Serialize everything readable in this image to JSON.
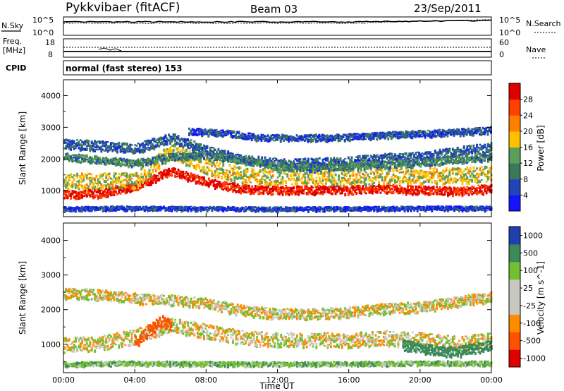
{
  "header": {
    "station": "Pykkvibaer (fitACF)",
    "beam": "Beam 03",
    "date": "23/Sep/2011"
  },
  "nsky_panel": {
    "left_label": "N.Sky",
    "left_ticks": [
      "10^5",
      "10^0"
    ],
    "right_ticks": [
      "10^5",
      "10^0"
    ],
    "right_label": "N.Search"
  },
  "freq_panel": {
    "left_label_1": "Freq.",
    "left_label_2": "[MHz]",
    "left_ticks": [
      "18",
      "8"
    ],
    "right_ticks": [
      "60",
      "0"
    ],
    "right_label": "Nave"
  },
  "cpid": {
    "label": "CPID",
    "value": "normal (fast stereo) 153"
  },
  "colors": {
    "power_scale": [
      "#1414ff",
      "#2244bb",
      "#3a7a5a",
      "#5aa05a",
      "#ffc000",
      "#ff8000",
      "#ff4000",
      "#e00000"
    ],
    "velocity_scale": [
      "#e00000",
      "#ff5000",
      "#ff8c00",
      "#c8c8c0",
      "#c8c8c0",
      "#70c030",
      "#3a8a5a",
      "#2040b0"
    ]
  },
  "chart_data": [
    {
      "type": "heatmap",
      "title": "",
      "xlabel": "",
      "ylabel": "Slant Range [km]",
      "x_ticks": [
        "00:00",
        "04:00",
        "08:00",
        "12:00",
        "16:00",
        "20:00",
        "00:00"
      ],
      "y_ticks": [
        "1000",
        "2000",
        "3000",
        "4000"
      ],
      "xlim": [
        0,
        24
      ],
      "ylim": [
        180,
        4500
      ],
      "colorbar": {
        "label": "Power [dB]",
        "ticks": [
          "4",
          "8",
          "12",
          "16",
          "20",
          "24",
          "28"
        ],
        "range": [
          0,
          30
        ]
      },
      "bands": [
        {
          "x": [
            0,
            2,
            4,
            6,
            8,
            10,
            12,
            14,
            16,
            18,
            20,
            22,
            24
          ],
          "y": [
            900,
            950,
            1150,
            1650,
            1300,
            1080,
            1050,
            1050,
            1050,
            1100,
            1050,
            1000,
            1100
          ],
          "thickness": 260,
          "value": 27
        },
        {
          "x": [
            0,
            2,
            4,
            6,
            8,
            10,
            12,
            14,
            16,
            18,
            20,
            22,
            24
          ],
          "y": [
            1300,
            1350,
            1350,
            2300,
            1800,
            1500,
            1450,
            1450,
            1450,
            1500,
            1500,
            1500,
            1550
          ],
          "thickness": 500,
          "value": 16
        },
        {
          "x": [
            0,
            2,
            4,
            6,
            8,
            10,
            12,
            14,
            16,
            18,
            20,
            22,
            24
          ],
          "y": [
            2500,
            2450,
            2350,
            2700,
            2300,
            2000,
            1900,
            1900,
            1950,
            2050,
            2100,
            2250,
            2400
          ],
          "thickness": 300,
          "value": 7
        },
        {
          "x": [
            0,
            2,
            4,
            6,
            8,
            10,
            12,
            14,
            16,
            18,
            20,
            22,
            24
          ],
          "y": [
            2100,
            2000,
            1900,
            2100,
            2150,
            2000,
            1800,
            1750,
            1800,
            1850,
            1900,
            2000,
            2100
          ],
          "thickness": 220,
          "value": 10
        },
        {
          "x": [
            7,
            9,
            11,
            13,
            15,
            17,
            19,
            21,
            23,
            24
          ],
          "y": [
            2900,
            2850,
            2700,
            2700,
            2700,
            2750,
            2800,
            2850,
            2900,
            2950
          ],
          "thickness": 200,
          "value": 6
        },
        {
          "x": [
            0,
            3,
            6,
            9,
            12,
            15,
            18,
            21,
            24
          ],
          "y": [
            450,
            480,
            470,
            460,
            450,
            460,
            470,
            480,
            470
          ],
          "thickness": 120,
          "value": 5
        }
      ]
    },
    {
      "type": "heatmap",
      "title": "",
      "xlabel": "Time UT",
      "ylabel": "Slant Range [km]",
      "x_ticks": [
        "00:00",
        "04:00",
        "08:00",
        "12:00",
        "16:00",
        "20:00",
        "00:00"
      ],
      "y_ticks": [
        "1000",
        "2000",
        "3000",
        "4000"
      ],
      "xlim": [
        0,
        24
      ],
      "ylim": [
        180,
        4500
      ],
      "colorbar": {
        "label": "Velocity [m s^-1]",
        "ticks": [
          "1000",
          "500",
          "100",
          "25",
          "-25",
          "-100",
          "-500",
          "-1000"
        ],
        "range": [
          -1000,
          1000
        ]
      },
      "bands": [
        {
          "x": [
            0,
            2,
            4,
            6,
            8,
            10,
            12,
            14,
            16,
            18,
            20,
            22,
            24
          ],
          "y": [
            1000,
            1050,
            1250,
            1600,
            1400,
            1200,
            1150,
            1150,
            1150,
            1200,
            1150,
            1050,
            1150
          ],
          "thickness": 420,
          "value": 0
        },
        {
          "x": [
            0,
            2,
            4,
            6,
            8,
            10,
            12,
            14,
            16,
            18,
            20,
            22,
            24
          ],
          "y": [
            2500,
            2450,
            2350,
            2300,
            2200,
            2000,
            1900,
            1900,
            1950,
            2050,
            2100,
            2250,
            2400
          ],
          "thickness": 300,
          "value": 0
        },
        {
          "x": [
            4,
            4.5,
            5,
            5.5,
            6
          ],
          "y": [
            1100,
            1300,
            1500,
            1700,
            1600
          ],
          "thickness": 350,
          "value": -300
        },
        {
          "x": [
            19,
            20,
            21,
            22,
            23,
            24
          ],
          "y": [
            1000,
            900,
            850,
            800,
            900,
            1000
          ],
          "thickness": 300,
          "value": 400
        },
        {
          "x": [
            0,
            3,
            6,
            9,
            12,
            15,
            18,
            21,
            24
          ],
          "y": [
            450,
            480,
            470,
            460,
            450,
            460,
            470,
            480,
            470
          ],
          "thickness": 120,
          "value": 60
        }
      ]
    }
  ]
}
